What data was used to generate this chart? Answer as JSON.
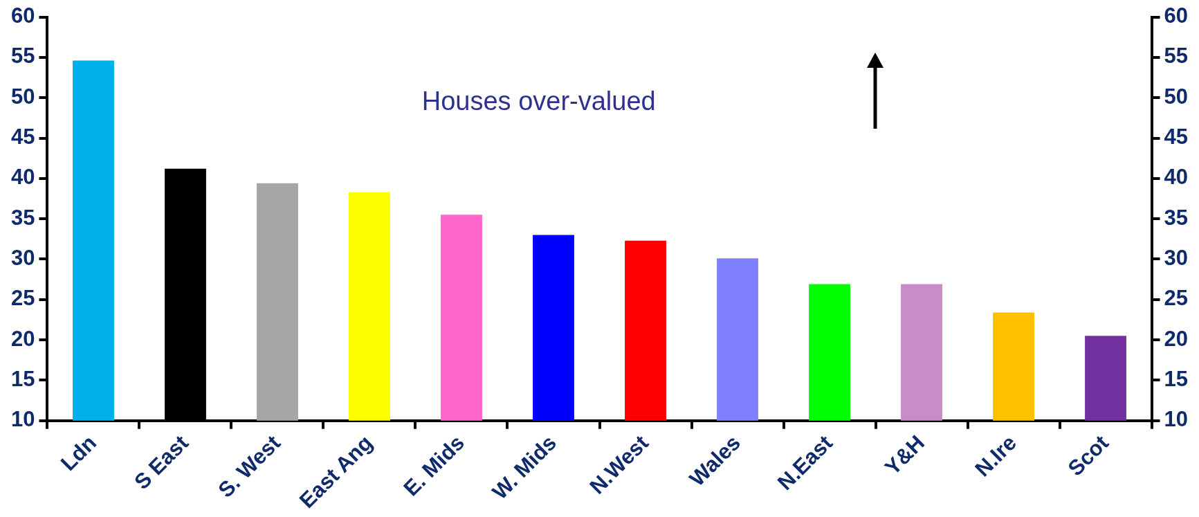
{
  "chart_data": {
    "type": "bar",
    "categories": [
      "Ldn",
      "S East",
      "S. West",
      "East Ang",
      "E. Mids",
      "W. Mids",
      "N.West",
      "Wales",
      "N.East",
      "Y&H",
      "N.Ire",
      "Scot"
    ],
    "values": [
      54.6,
      41.2,
      39.4,
      38.3,
      35.5,
      33.0,
      32.3,
      30.1,
      26.9,
      26.9,
      23.4,
      20.5
    ],
    "colors": [
      "#00b0e8",
      "#000000",
      "#a6a6a6",
      "#ffff00",
      "#ff66cc",
      "#0000ff",
      "#ff0000",
      "#8080ff",
      "#00ff00",
      "#c88cc8",
      "#ffc000",
      "#7030a0"
    ],
    "ylim": [
      10,
      60
    ],
    "yticks": [
      10,
      15,
      20,
      25,
      30,
      35,
      40,
      45,
      50,
      55,
      60
    ],
    "y2lim": [
      10,
      60
    ],
    "y2ticks": [
      10,
      15,
      20,
      25,
      30,
      35,
      40,
      45,
      50,
      55,
      60
    ],
    "annotations": [
      "Houses over-valued"
    ],
    "grid": false,
    "legend": false
  }
}
